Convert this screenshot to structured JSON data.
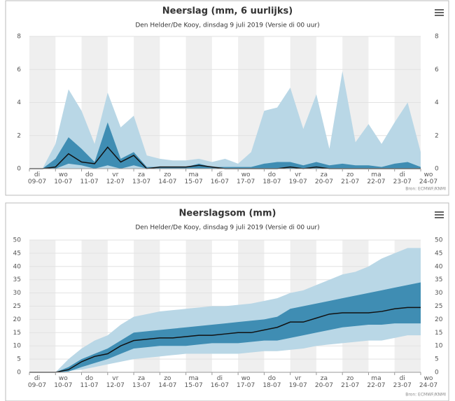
{
  "chart_data": [
    {
      "type": "area-band",
      "title": "Neerslag (mm, 6 uurlijks)",
      "subtitle": "Den Helder/De Kooy, dinsdag 9 juli 2019 (Versie di 00 uur)",
      "source": "Bron: ECMWF/KNMI",
      "x": [
        0,
        0.5,
        1,
        1.5,
        2,
        2.5,
        3,
        3.5,
        4,
        4.5,
        5,
        5.5,
        6,
        6.5,
        7,
        7.5,
        8,
        8.5,
        9,
        9.5,
        10,
        10.5,
        11,
        11.5,
        12,
        12.5,
        13,
        13.5,
        14,
        14.5,
        15
      ],
      "xlim": [
        0,
        15
      ],
      "xticks": [
        {
          "value": 0,
          "label": "di\n09-07"
        },
        {
          "value": 1,
          "label": "wo\n10-07"
        },
        {
          "value": 2,
          "label": "do\n11-07"
        },
        {
          "value": 3,
          "label": "vr\n12-07"
        },
        {
          "value": 4,
          "label": "za\n13-07"
        },
        {
          "value": 5,
          "label": "zo\n14-07"
        },
        {
          "value": 6,
          "label": "ma\n15-07"
        },
        {
          "value": 7,
          "label": "di\n16-07"
        },
        {
          "value": 8,
          "label": "wo\n17-07"
        },
        {
          "value": 9,
          "label": "do\n18-07"
        },
        {
          "value": 10,
          "label": "vr\n19-07"
        },
        {
          "value": 11,
          "label": "za\n20-07"
        },
        {
          "value": 12,
          "label": "zo\n21-07"
        },
        {
          "value": 13,
          "label": "ma\n22-07"
        },
        {
          "value": 14,
          "label": "di\n23-07"
        },
        {
          "value": 15,
          "label": "wo\n24-07"
        }
      ],
      "ylim": [
        0,
        8
      ],
      "yticks": [
        0,
        2,
        4,
        6,
        8
      ],
      "bands": [
        {
          "color": "#b9d7e6",
          "high": [
            0,
            0,
            1.5,
            4.8,
            3.5,
            1.5,
            4.6,
            2.5,
            3.2,
            0.8,
            0.6,
            0.5,
            0.5,
            0.6,
            0.4,
            0.6,
            0.3,
            1.0,
            3.5,
            3.7,
            4.9,
            2.4,
            4.5,
            1.2,
            5.9,
            1.6,
            2.7,
            1.5,
            2.8,
            4.0,
            1.0
          ],
          "low": [
            0,
            0,
            0,
            0,
            0,
            0,
            0,
            0,
            0,
            0,
            0,
            0,
            0,
            0,
            0,
            0,
            0,
            0,
            0,
            0,
            0,
            0,
            0,
            0,
            0,
            0,
            0,
            0,
            0,
            0,
            0
          ]
        },
        {
          "color": "#3f8db3",
          "high": [
            0,
            0,
            0.6,
            1.9,
            1.2,
            0.4,
            2.8,
            0.6,
            1.0,
            0.1,
            0.1,
            0.1,
            0.1,
            0.3,
            0.1,
            0.1,
            0.1,
            0.1,
            0.3,
            0.4,
            0.4,
            0.2,
            0.4,
            0.2,
            0.3,
            0.2,
            0.2,
            0.1,
            0.3,
            0.4,
            0.1
          ],
          "low": [
            0,
            0,
            0,
            0.3,
            0.2,
            0,
            0.2,
            0,
            0.2,
            0,
            0,
            0,
            0,
            0,
            0,
            0,
            0,
            0,
            0,
            0,
            0,
            0,
            0,
            0,
            0,
            0,
            0,
            0,
            0,
            0,
            0
          ]
        }
      ],
      "line": {
        "color": "#111111",
        "values": [
          0,
          0,
          0.1,
          0.9,
          0.4,
          0.3,
          1.3,
          0.4,
          0.8,
          0,
          0.1,
          0.1,
          0.1,
          0.2,
          0.1,
          0,
          0,
          0,
          0,
          0,
          0.1,
          0,
          0.1,
          0,
          0,
          0,
          0,
          0,
          0,
          0,
          0
        ]
      }
    },
    {
      "type": "area-band",
      "title": "Neerslagsom (mm)",
      "subtitle": "Den Helder/De Kooy, dinsdag 9 juli 2019 (Versie di 00 uur)",
      "source": "Bron: ECMWF/KNMI",
      "x": [
        0,
        0.5,
        1,
        1.5,
        2,
        2.5,
        3,
        3.5,
        4,
        4.5,
        5,
        5.5,
        6,
        6.5,
        7,
        7.5,
        8,
        8.5,
        9,
        9.5,
        10,
        10.5,
        11,
        11.5,
        12,
        12.5,
        13,
        13.5,
        14,
        14.5,
        15
      ],
      "xlim": [
        0,
        15
      ],
      "xticks": [
        {
          "value": 0,
          "label": "di\n09-07"
        },
        {
          "value": 1,
          "label": "wo\n10-07"
        },
        {
          "value": 2,
          "label": "do\n11-07"
        },
        {
          "value": 3,
          "label": "vr\n12-07"
        },
        {
          "value": 4,
          "label": "za\n13-07"
        },
        {
          "value": 5,
          "label": "zo\n14-07"
        },
        {
          "value": 6,
          "label": "ma\n15-07"
        },
        {
          "value": 7,
          "label": "di\n16-07"
        },
        {
          "value": 8,
          "label": "wo\n17-07"
        },
        {
          "value": 9,
          "label": "do\n18-07"
        },
        {
          "value": 10,
          "label": "vr\n19-07"
        },
        {
          "value": 11,
          "label": "za\n20-07"
        },
        {
          "value": 12,
          "label": "zo\n21-07"
        },
        {
          "value": 13,
          "label": "ma\n22-07"
        },
        {
          "value": 14,
          "label": "di\n23-07"
        },
        {
          "value": 15,
          "label": "wo\n24-07"
        }
      ],
      "ylim": [
        0,
        50
      ],
      "yticks": [
        0,
        5,
        10,
        15,
        20,
        25,
        30,
        35,
        40,
        45,
        50
      ],
      "bands": [
        {
          "color": "#b9d7e6",
          "high": [
            0,
            0,
            0,
            5,
            9,
            12,
            14,
            18,
            21,
            22,
            23,
            23.5,
            24,
            24.5,
            25,
            25,
            25.5,
            26,
            27,
            28,
            30,
            31,
            33,
            35,
            37,
            38,
            40,
            43,
            45,
            47,
            47
          ],
          "low": [
            0,
            0,
            0,
            0.5,
            1,
            2,
            3,
            4,
            5,
            5.5,
            6,
            6.5,
            7,
            7,
            7,
            7,
            7,
            7.5,
            8,
            8,
            8.5,
            9,
            10,
            10.5,
            11,
            11.5,
            12,
            12,
            13,
            14,
            14
          ]
        },
        {
          "color": "#3f8db3",
          "high": [
            0,
            0,
            0,
            2,
            5,
            7,
            9,
            12,
            15,
            15.5,
            16,
            16.5,
            17,
            17.5,
            18,
            18.5,
            19,
            19.5,
            20,
            21,
            24,
            25,
            26,
            27,
            28,
            29,
            30,
            31,
            32,
            33,
            34
          ],
          "low": [
            0,
            0,
            0,
            0.3,
            2,
            3.5,
            5,
            7,
            9,
            9.5,
            10,
            10,
            10,
            10.5,
            11,
            11,
            11,
            11.5,
            12,
            12,
            13,
            14,
            15,
            16,
            17,
            17.5,
            18,
            18,
            18.5,
            18.5,
            18.5
          ]
        }
      ],
      "line": {
        "color": "#111111",
        "values": [
          0,
          0,
          0,
          1,
          4,
          6,
          7,
          10,
          12,
          12.5,
          13,
          13,
          13.5,
          14,
          14,
          14.5,
          15,
          15,
          16,
          17,
          19,
          19,
          20.5,
          22,
          22.5,
          22.5,
          22.5,
          23,
          24,
          24.5,
          24.5
        ]
      }
    }
  ]
}
